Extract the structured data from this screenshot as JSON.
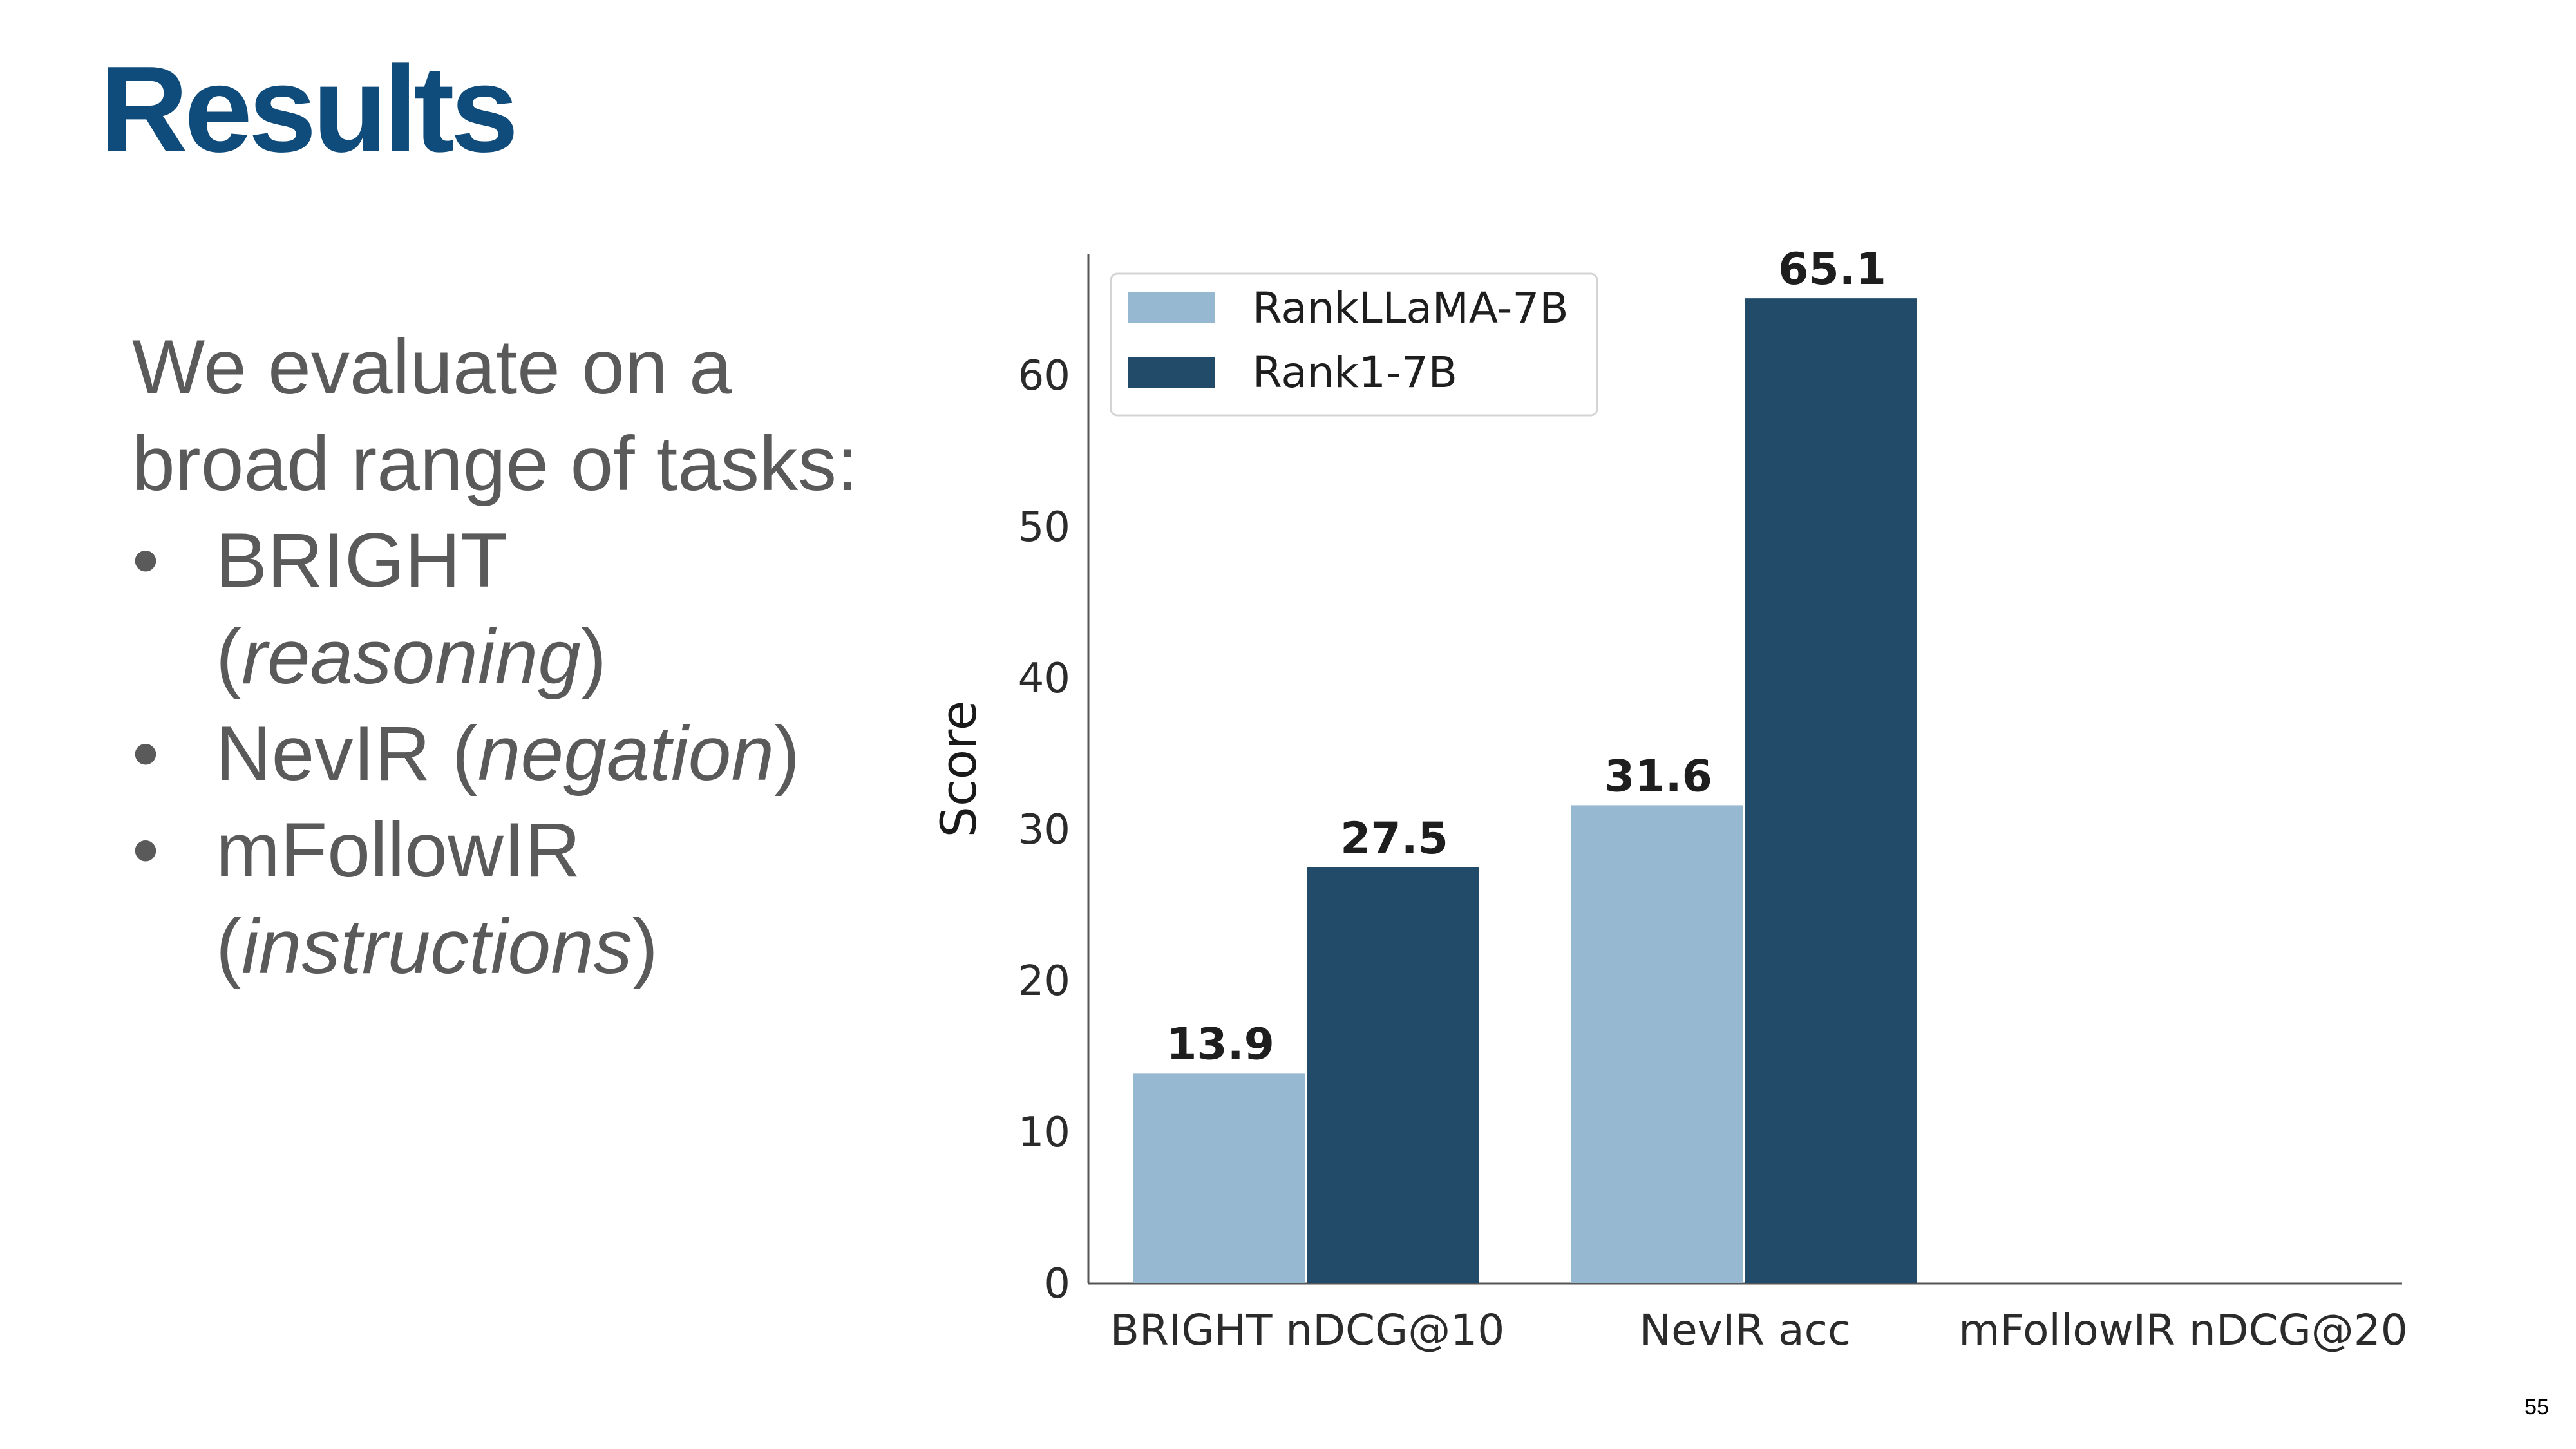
{
  "slide": {
    "title": "Results",
    "intro_line1": "We evaluate on a",
    "intro_line2": "broad range of tasks:",
    "bullets": [
      {
        "name": "BRIGHT",
        "open": "(",
        "desc": "reasoning",
        "close": ")"
      },
      {
        "name": "NevIR (",
        "desc": "negation",
        "close": ")"
      },
      {
        "name": "mFollowIR",
        "open": "(",
        "desc": "instructions",
        "close": ")"
      }
    ],
    "bullet_glyph": "•",
    "page_number": "55"
  },
  "chart_data": {
    "type": "bar",
    "categories": [
      "BRIGHT nDCG@10",
      "NevIR acc",
      "mFollowIR nDCG@20"
    ],
    "series": [
      {
        "name": "RankLLaMA-7B",
        "color": "#97b8d1",
        "values": [
          13.9,
          31.6,
          null
        ]
      },
      {
        "name": "Rank1-7B",
        "color": "#214b69",
        "values": [
          27.5,
          65.1,
          null
        ]
      }
    ],
    "ylabel": "Score",
    "xlabel": "",
    "ylim": [
      0,
      68
    ],
    "yticks": [
      0,
      10,
      20,
      30,
      40,
      50,
      60
    ],
    "grid": false,
    "legend_position": "top-left",
    "data_labels": true
  }
}
